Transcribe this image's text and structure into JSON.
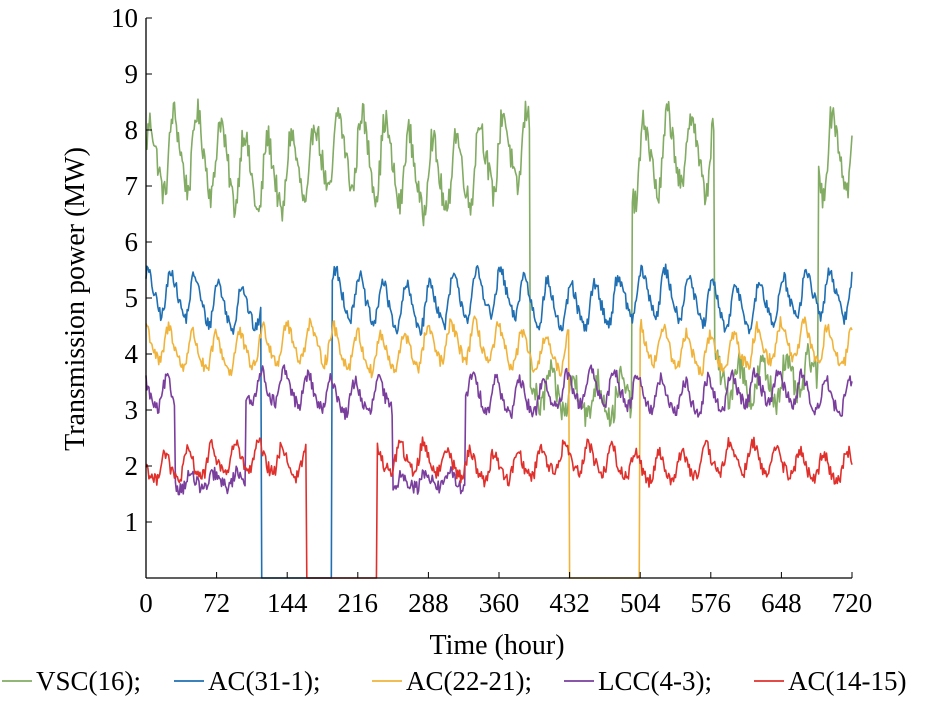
{
  "chart_data": {
    "type": "line",
    "title": "",
    "xlabel": "Time (hour)",
    "ylabel": "Transmission power (MW)",
    "xlim": [
      0,
      720
    ],
    "ylim": [
      0,
      10
    ],
    "xticks": [
      0,
      72,
      144,
      216,
      288,
      360,
      432,
      504,
      576,
      648,
      720
    ],
    "yticks": [
      1,
      2,
      3,
      4,
      5,
      6,
      7,
      8,
      9,
      10
    ],
    "grid": false,
    "legend_position": "bottom",
    "series": [
      {
        "name": "VSC(16);",
        "color": "#82ab63",
        "base": 7.4,
        "amp": 0.95,
        "noise": 0.25,
        "phase": 0.2,
        "segments": [
          {
            "from": 0,
            "to": 392,
            "mode": "normal"
          },
          {
            "from": 392,
            "to": 496,
            "mode": "alt",
            "base": 3.3,
            "amp": 0.45
          },
          {
            "from": 496,
            "to": 580,
            "mode": "normal"
          },
          {
            "from": 580,
            "to": 686,
            "mode": "alt",
            "base": 3.6,
            "amp": 0.45
          },
          {
            "from": 686,
            "to": 720,
            "mode": "normal"
          }
        ]
      },
      {
        "name": "AC(31-1);",
        "color": "#1f6fb2",
        "base": 4.95,
        "amp": 0.55,
        "noise": 0.12,
        "phase": 0.9,
        "segments": [
          {
            "from": 0,
            "to": 118,
            "mode": "normal"
          },
          {
            "from": 118,
            "to": 190,
            "mode": "zero"
          },
          {
            "from": 190,
            "to": 720,
            "mode": "normal"
          }
        ]
      },
      {
        "name": "AC(22-21);",
        "color": "#f0b43c",
        "base": 4.1,
        "amp": 0.45,
        "noise": 0.12,
        "phase": 1.5,
        "segments": [
          {
            "from": 0,
            "to": 432,
            "mode": "normal"
          },
          {
            "from": 432,
            "to": 504,
            "mode": "zero"
          },
          {
            "from": 504,
            "to": 720,
            "mode": "normal"
          }
        ]
      },
      {
        "name": "LCC(4-3);",
        "color": "#7a3e9d",
        "base": 3.3,
        "amp": 0.4,
        "noise": 0.12,
        "phase": 2.1,
        "segments": [
          {
            "from": 0,
            "to": 30,
            "mode": "normal"
          },
          {
            "from": 30,
            "to": 102,
            "mode": "alt",
            "base": 1.75,
            "amp": 0.18
          },
          {
            "from": 102,
            "to": 252,
            "mode": "normal"
          },
          {
            "from": 252,
            "to": 326,
            "mode": "alt",
            "base": 1.7,
            "amp": 0.2
          },
          {
            "from": 326,
            "to": 720,
            "mode": "normal"
          }
        ]
      },
      {
        "name": "AC(14-15)",
        "color": "#e0302c",
        "base": 2.05,
        "amp": 0.35,
        "noise": 0.12,
        "phase": 2.7,
        "segments": [
          {
            "from": 0,
            "to": 164,
            "mode": "normal"
          },
          {
            "from": 164,
            "to": 236,
            "mode": "zero"
          },
          {
            "from": 236,
            "to": 720,
            "mode": "normal"
          }
        ]
      }
    ]
  }
}
